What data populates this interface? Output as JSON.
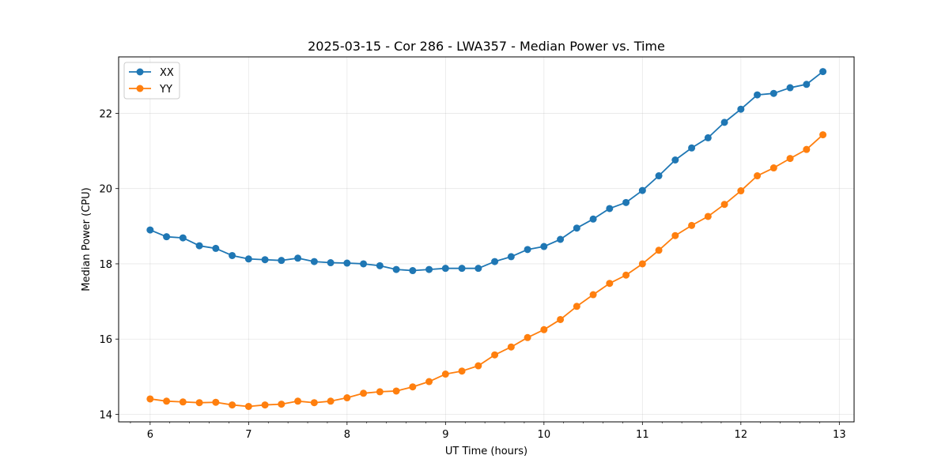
{
  "chart_data": {
    "type": "line",
    "title": "2025-03-15 - Cor 286 - LWA357 - Median Power vs. Time",
    "xlabel": "UT Time (hours)",
    "ylabel": "Median Power (CPU)",
    "xlim": [
      5.68,
      13.15
    ],
    "ylim": [
      13.8,
      23.5
    ],
    "xticks": [
      6,
      7,
      8,
      9,
      10,
      11,
      12,
      13
    ],
    "yticks": [
      14,
      16,
      18,
      20,
      22
    ],
    "x_minor_step": 0.2,
    "grid": true,
    "legend_position": "top-left",
    "x": [
      6.0,
      6.1667,
      6.3333,
      6.5,
      6.6667,
      6.8333,
      7.0,
      7.1667,
      7.3333,
      7.5,
      7.6667,
      7.8333,
      8.0,
      8.1667,
      8.3333,
      8.5,
      8.6667,
      8.8333,
      9.0,
      9.1667,
      9.3333,
      9.5,
      9.6667,
      9.8333,
      10.0,
      10.1667,
      10.3333,
      10.5,
      10.6667,
      10.8333,
      11.0,
      11.1667,
      11.3333,
      11.5,
      11.6667,
      11.8333,
      12.0,
      12.1667,
      12.3333,
      12.5,
      12.6667,
      12.8333
    ],
    "series": [
      {
        "name": "XX",
        "color": "#1f77b4",
        "values": [
          18.9,
          18.72,
          18.69,
          18.48,
          18.41,
          18.22,
          18.13,
          18.11,
          18.09,
          18.15,
          18.06,
          18.03,
          18.02,
          18.0,
          17.95,
          17.85,
          17.82,
          17.85,
          17.88,
          17.88,
          17.88,
          18.06,
          18.19,
          18.38,
          18.46,
          18.65,
          18.95,
          19.19,
          19.47,
          19.63,
          19.95,
          20.34,
          20.76,
          21.08,
          21.35,
          21.76,
          22.11,
          22.49,
          22.53,
          22.68,
          22.77,
          23.11
        ]
      },
      {
        "name": "YY",
        "color": "#ff7f0e",
        "values": [
          14.41,
          14.35,
          14.33,
          14.31,
          14.32,
          14.25,
          14.21,
          14.25,
          14.27,
          14.35,
          14.31,
          14.35,
          14.44,
          14.56,
          14.6,
          14.62,
          14.73,
          14.87,
          15.07,
          15.15,
          15.29,
          15.58,
          15.79,
          16.04,
          16.25,
          16.52,
          16.87,
          17.18,
          17.48,
          17.7,
          18.0,
          18.36,
          18.75,
          19.02,
          19.26,
          19.58,
          19.94,
          20.34,
          20.55,
          20.8,
          21.04,
          21.43
        ]
      }
    ]
  }
}
